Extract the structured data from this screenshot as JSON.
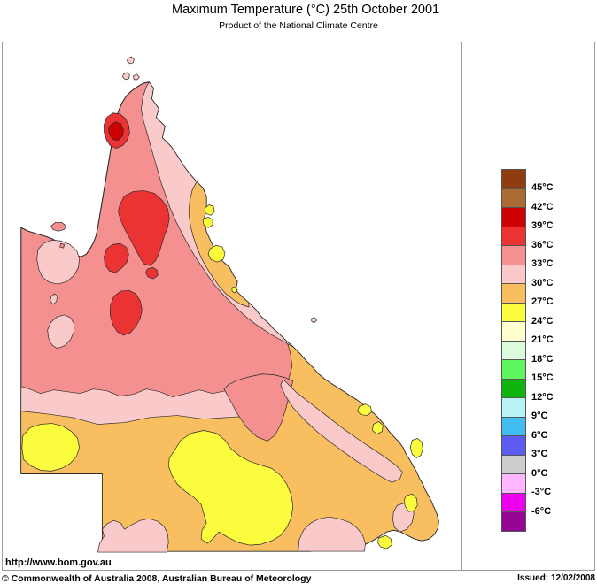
{
  "title": {
    "main": "Maximum Temperature (°C)",
    "date": "25th October 2001",
    "subtitle": "Product of the National Climate Centre"
  },
  "legend": {
    "labels": [
      "45°C",
      "42°C",
      "39°C",
      "36°C",
      "33°C",
      "30°C",
      "27°C",
      "24°C",
      "21°C",
      "18°C",
      "15°C",
      "12°C",
      "9°C",
      "6°C",
      "3°C",
      "0°C",
      "-3°C",
      "-6°C"
    ],
    "colors": [
      "#8F3D10",
      "#A96B33",
      "#CE0202",
      "#EC3333",
      "#F59090",
      "#FACACA",
      "#F8BE60",
      "#FCFC3E",
      "#FFFFCF",
      "#DCFADC",
      "#5FF75F",
      "#0FB50F",
      "#B8F4F4",
      "#41BDF0",
      "#5C5CF2",
      "#CDCDCD",
      "#FFB5FF",
      "#ED00ED",
      "#950495"
    ]
  },
  "map": {
    "region": "Queensland",
    "outline_color": "#2a2a2a"
  },
  "footer": {
    "url": "http://www.bom.gov.au",
    "copyright": "© Commonwealth of Australia 2008, Australian Bureau of Meteorology",
    "issued": "Issued: 12/02/2008"
  }
}
